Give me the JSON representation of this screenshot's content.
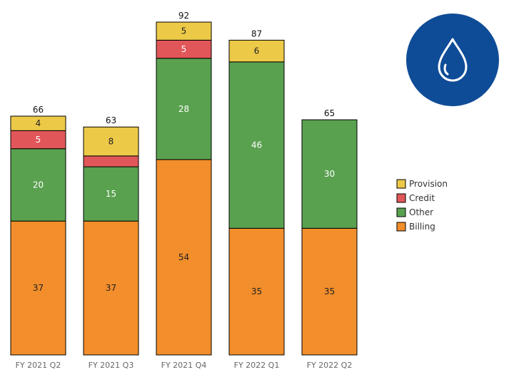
{
  "chart_data": {
    "type": "bar",
    "stacked": true,
    "categories": [
      "FY 2021 Q2",
      "FY 2021 Q3",
      "FY 2021 Q4",
      "FY 2022 Q1",
      "FY 2022 Q2"
    ],
    "series": [
      {
        "name": "Billing",
        "color": "#f28e2b",
        "label_color": "#222222",
        "values": [
          37,
          37,
          54,
          35,
          35
        ]
      },
      {
        "name": "Other",
        "color": "#59a14f",
        "label_color": "#ffffff",
        "values": [
          20,
          15,
          28,
          46,
          30
        ]
      },
      {
        "name": "Credit",
        "color": "#e15759",
        "label_color": "#ffffff",
        "values": [
          5,
          3,
          5,
          0,
          0
        ],
        "labels": [
          "5",
          "",
          "5",
          "",
          ""
        ]
      },
      {
        "name": "Provision",
        "color": "#edc948",
        "label_color": "#222222",
        "values": [
          4,
          8,
          5,
          6,
          0
        ],
        "labels": [
          "4",
          "8",
          "5",
          "6",
          ""
        ]
      }
    ],
    "totals": [
      "66",
      "63",
      "92",
      "87",
      "65"
    ],
    "legend_order": [
      "Provision",
      "Credit",
      "Other",
      "Billing"
    ],
    "legend_position": "right",
    "ylim": [
      0,
      92
    ],
    "grid": false,
    "title": "",
    "xlabel": "",
    "ylabel": ""
  },
  "logo": {
    "icon": "water-drop-icon",
    "circle_color": "#0f4c97",
    "drop_color": "#ffffff"
  }
}
